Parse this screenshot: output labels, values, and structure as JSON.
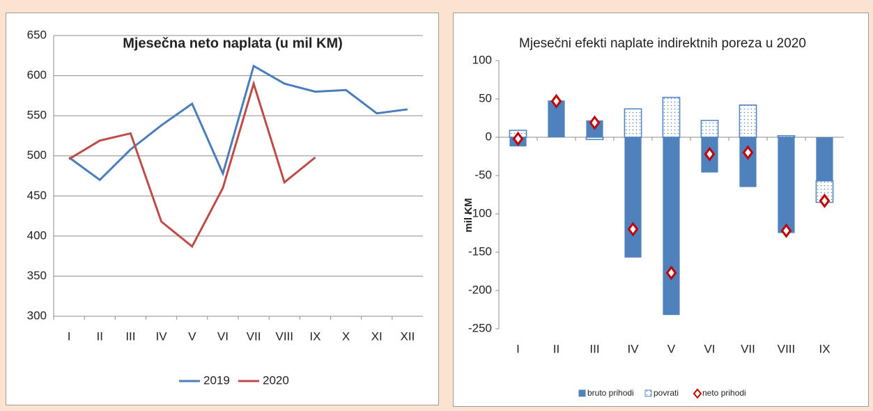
{
  "chart_data": [
    {
      "type": "line",
      "title": "Mjesečna neto naplata (u mil KM)",
      "categories": [
        "I",
        "II",
        "III",
        "IV",
        "V",
        "VI",
        "VII",
        "VIII",
        "IX",
        "X",
        "XI",
        "XII"
      ],
      "series": [
        {
          "name": "2019",
          "color": "#4a7ebb",
          "values": [
            498,
            470,
            508,
            538,
            565,
            478,
            612,
            590,
            580,
            582,
            553,
            558
          ]
        },
        {
          "name": "2020",
          "color": "#be4b48",
          "values": [
            496,
            519,
            528,
            418,
            387,
            460,
            590,
            467,
            498,
            null,
            null,
            null
          ]
        }
      ],
      "ylim": [
        300,
        650
      ],
      "yticks": [
        300,
        350,
        400,
        450,
        500,
        550,
        600,
        650
      ],
      "grid": true,
      "legend": "bottom"
    },
    {
      "type": "bar",
      "stacked": true,
      "title": "Mjesečni efekti naplate  indirektnih poreza u 2020",
      "ylabel": "mil KM",
      "categories": [
        "I",
        "II",
        "III",
        "IV",
        "V",
        "VI",
        "VII",
        "VIII",
        "IX"
      ],
      "series": [
        {
          "name": "bruto prihodi",
          "color": "#4f81bd",
          "values": [
            -12,
            48,
            22,
            -157,
            -232,
            -46,
            -65,
            -125,
            -57
          ]
        },
        {
          "name": "povrati",
          "color": "#4f81bd",
          "pattern": "dotted",
          "values": [
            9,
            0,
            -3,
            37,
            52,
            22,
            42,
            2,
            -28
          ]
        },
        {
          "name": "neto prihodi",
          "color": "#c00000",
          "type": "marker",
          "values": [
            -2,
            47,
            19,
            -120,
            -177,
            -22,
            -20,
            -122,
            -83
          ]
        }
      ],
      "ylim": [
        -250,
        100
      ],
      "yticks": [
        -250,
        -200,
        -150,
        -100,
        -50,
        0,
        50,
        100
      ],
      "grid": false,
      "legend": "bottom"
    }
  ]
}
